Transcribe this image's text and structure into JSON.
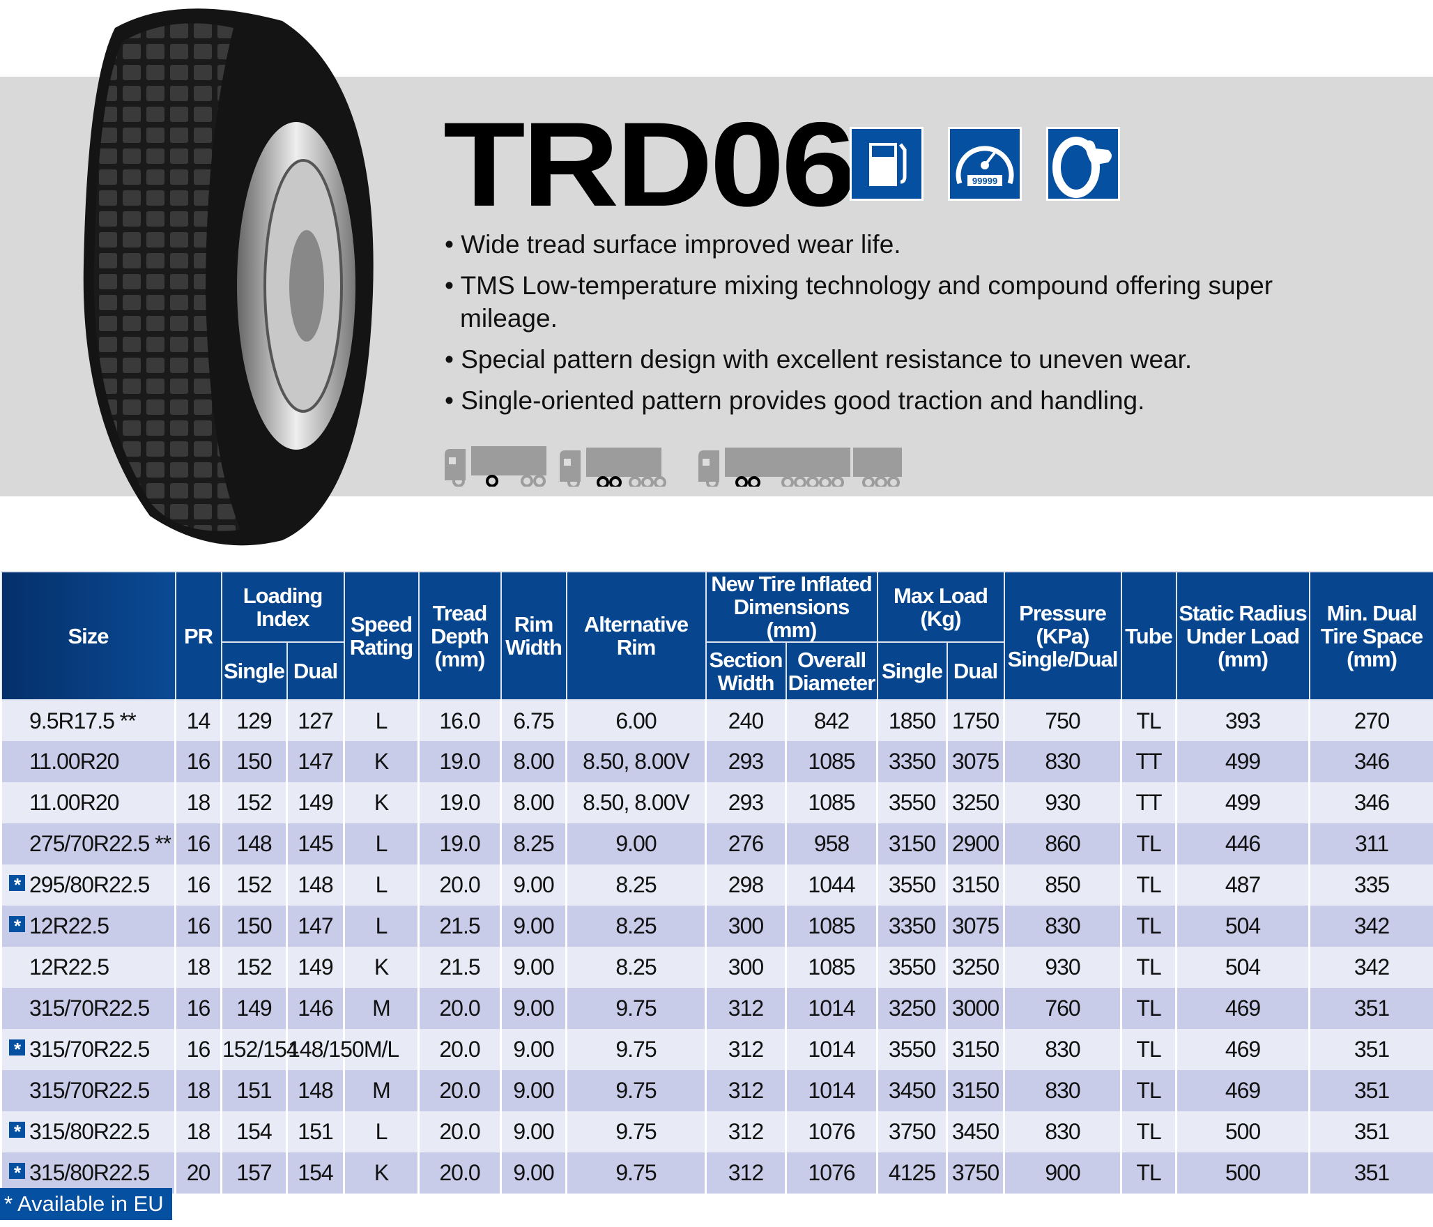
{
  "product": {
    "name": "TRD06",
    "feature_icons": [
      "fuel-pump-icon",
      "odometer-icon",
      "strong-tire-icon"
    ],
    "odometer_text": "99999",
    "bullets": [
      "Wide tread surface improved wear life.",
      "TMS Low-temperature mixing technology and compound offering super mileage.",
      "Special pattern design with excellent resistance to uneven wear.",
      "Single-oriented pattern provides good traction and handling."
    ],
    "application_icons": [
      "truck-trailer-icon",
      "truck-tandem-trailer-icon",
      "road-train-icon"
    ]
  },
  "colors": {
    "brand_blue": "#0550a0",
    "header_navy": "#07468f",
    "row_light": "#e8eaf6",
    "row_dark": "#c8cce9",
    "band_gray": "#d9d9d9"
  },
  "table": {
    "headers": {
      "size": "Size",
      "pr": "PR",
      "loading_index": "Loading Index",
      "single": "Single",
      "dual": "Dual",
      "speed": "Speed Rating",
      "tread": "Tread Depth (mm)",
      "rim": "Rim Width",
      "alt_rim": "Alternative Rim",
      "dims": "New Tire Inflated Dimensions (mm)",
      "section": "Section Width",
      "overall": "Overall Diameter",
      "maxload": "Max Load (Kg)",
      "ml_single": "Single",
      "ml_dual": "Dual",
      "pressure": "Pressure (KPa) Single/Dual",
      "tube": "Tube",
      "static": "Static Radius Under Load (mm)",
      "mindual": "Min. Dual Tire Space (mm)"
    },
    "rows": [
      {
        "eu": false,
        "cells": [
          "9.5R17.5 **",
          "14",
          "129",
          "127",
          "L",
          "16.0",
          "6.75",
          "6.00",
          "240",
          "842",
          "1850",
          "1750",
          "750",
          "TL",
          "393",
          "270"
        ]
      },
      {
        "eu": false,
        "cells": [
          "11.00R20",
          "16",
          "150",
          "147",
          "K",
          "19.0",
          "8.00",
          "8.50, 8.00V",
          "293",
          "1085",
          "3350",
          "3075",
          "830",
          "TT",
          "499",
          "346"
        ]
      },
      {
        "eu": false,
        "cells": [
          "11.00R20",
          "18",
          "152",
          "149",
          "K",
          "19.0",
          "8.00",
          "8.50, 8.00V",
          "293",
          "1085",
          "3550",
          "3250",
          "930",
          "TT",
          "499",
          "346"
        ]
      },
      {
        "eu": false,
        "cells": [
          "275/70R22.5 **",
          "16",
          "148",
          "145",
          "L",
          "19.0",
          "8.25",
          "9.00",
          "276",
          "958",
          "3150",
          "2900",
          "860",
          "TL",
          "446",
          "311"
        ]
      },
      {
        "eu": true,
        "cells": [
          "295/80R22.5",
          "16",
          "152",
          "148",
          "L",
          "20.0",
          "9.00",
          "8.25",
          "298",
          "1044",
          "3550",
          "3150",
          "850",
          "TL",
          "487",
          "335"
        ]
      },
      {
        "eu": true,
        "cells": [
          "12R22.5",
          "16",
          "150",
          "147",
          "L",
          "21.5",
          "9.00",
          "8.25",
          "300",
          "1085",
          "3350",
          "3075",
          "830",
          "TL",
          "504",
          "342"
        ]
      },
      {
        "eu": false,
        "cells": [
          "12R22.5",
          "18",
          "152",
          "149",
          "K",
          "21.5",
          "9.00",
          "8.25",
          "300",
          "1085",
          "3550",
          "3250",
          "930",
          "TL",
          "504",
          "342"
        ]
      },
      {
        "eu": false,
        "cells": [
          "315/70R22.5",
          "16",
          "149",
          "146",
          "M",
          "20.0",
          "9.00",
          "9.75",
          "312",
          "1014",
          "3250",
          "3000",
          "760",
          "TL",
          "469",
          "351"
        ]
      },
      {
        "eu": true,
        "cells": [
          "315/70R22.5",
          "16",
          "152/154",
          "148/150",
          "M/L",
          "20.0",
          "9.00",
          "9.75",
          "312",
          "1014",
          "3550",
          "3150",
          "830",
          "TL",
          "469",
          "351"
        ]
      },
      {
        "eu": false,
        "cells": [
          "315/70R22.5",
          "18",
          "151",
          "148",
          "M",
          "20.0",
          "9.00",
          "9.75",
          "312",
          "1014",
          "3450",
          "3150",
          "830",
          "TL",
          "469",
          "351"
        ]
      },
      {
        "eu": true,
        "cells": [
          "315/80R22.5",
          "18",
          "154",
          "151",
          "L",
          "20.0",
          "9.00",
          "9.75",
          "312",
          "1076",
          "3750",
          "3450",
          "830",
          "TL",
          "500",
          "351"
        ]
      },
      {
        "eu": true,
        "cells": [
          "315/80R22.5",
          "20",
          "157",
          "154",
          "K",
          "20.0",
          "9.00",
          "9.75",
          "312",
          "1076",
          "4125",
          "3750",
          "900",
          "TL",
          "500",
          "351"
        ]
      }
    ],
    "eu_marker": "*"
  },
  "legend": {
    "eu_label": "* Available in EU"
  }
}
